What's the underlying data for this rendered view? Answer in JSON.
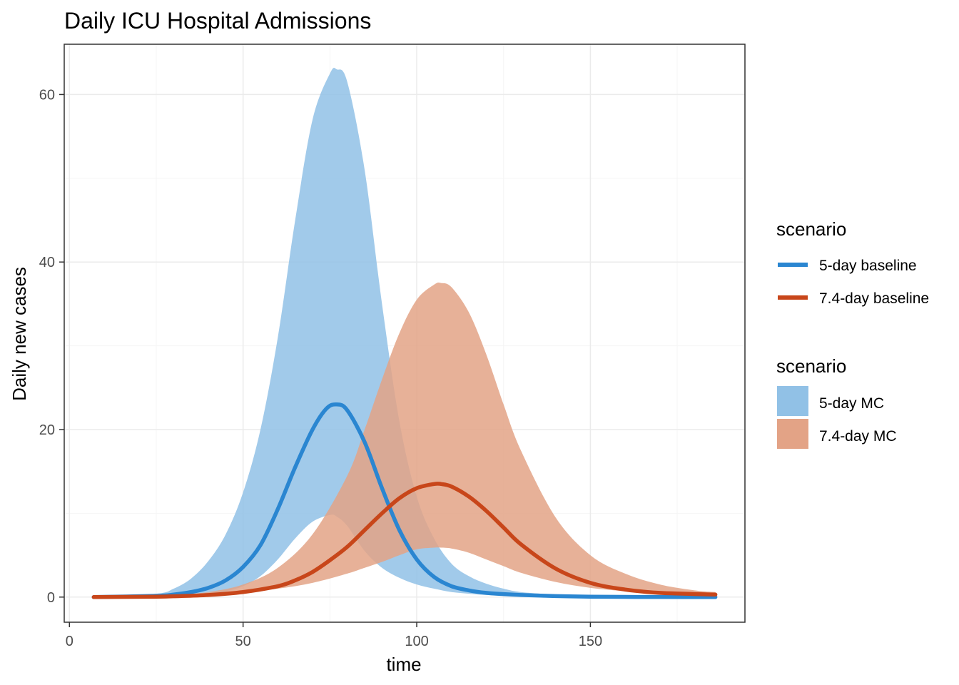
{
  "chart_data": {
    "type": "area",
    "title": "Daily ICU Hospital Admissions",
    "xlabel": "time",
    "ylabel": "Daily new cases",
    "xlim": [
      -1.5,
      194.5
    ],
    "ylim": [
      -3,
      66
    ],
    "x_ticks": [
      0,
      50,
      100,
      150
    ],
    "y_ticks": [
      0,
      20,
      40,
      60
    ],
    "x_tick_labels": [
      "0",
      "50",
      "100",
      "150"
    ],
    "y_tick_labels": [
      "0",
      "20",
      "40",
      "60"
    ],
    "grid": true,
    "legend_position": "right",
    "colors": {
      "line_5day": "#2a86d1",
      "line_74day": "#c8461a",
      "band_5day": "#91c1e6",
      "band_74day": "#e3a386",
      "panel_border": "#333333",
      "grid_major": "#ebebeb",
      "grid_minor": "#f5f5f5"
    },
    "line_legend": {
      "title": "scenario",
      "items": [
        {
          "label": "5-day baseline",
          "color": "#2a86d1"
        },
        {
          "label": "7.4-day baseline",
          "color": "#c8461a"
        }
      ]
    },
    "band_legend": {
      "title": "scenario",
      "items": [
        {
          "label": "5-day MC",
          "color": "#91c1e6"
        },
        {
          "label": "7.4-day MC",
          "color": "#e3a386"
        }
      ]
    },
    "series": [
      {
        "name": "5-day MC",
        "kind": "band",
        "x": [
          7,
          25,
          30,
          35,
          40,
          45,
          50,
          55,
          60,
          65,
          70,
          75,
          77,
          80,
          85,
          90,
          95,
          100,
          105,
          110,
          115,
          120,
          125,
          130,
          140,
          150,
          160,
          170,
          186
        ],
        "lower": [
          0,
          0.05,
          0.1,
          0.2,
          0.4,
          0.7,
          1.3,
          2.5,
          4.5,
          7.0,
          9.0,
          9.8,
          9.6,
          8.5,
          5.5,
          3.5,
          2.3,
          1.5,
          1.0,
          0.6,
          0.4,
          0.25,
          0.15,
          0.1,
          0.05,
          0.02,
          0.01,
          0.0,
          0.0
        ],
        "upper": [
          0,
          0.4,
          1.0,
          2.2,
          4.3,
          7.5,
          12.5,
          20.0,
          31.0,
          45.0,
          57.0,
          62.5,
          63.0,
          61.5,
          51.0,
          35.0,
          21.0,
          12.0,
          7.0,
          4.0,
          2.5,
          1.6,
          1.0,
          0.6,
          0.3,
          0.15,
          0.07,
          0.03,
          0.0
        ]
      },
      {
        "name": "7.4-day MC",
        "kind": "band",
        "x": [
          7,
          25,
          30,
          40,
          50,
          60,
          70,
          80,
          85,
          90,
          95,
          100,
          105,
          107,
          110,
          115,
          120,
          125,
          130,
          140,
          150,
          160,
          170,
          180,
          186
        ],
        "lower": [
          0,
          0.05,
          0.1,
          0.3,
          0.6,
          1.0,
          1.7,
          2.8,
          3.5,
          4.2,
          5.0,
          5.7,
          5.9,
          5.9,
          5.8,
          5.3,
          4.5,
          3.7,
          2.9,
          1.8,
          1.1,
          0.7,
          0.4,
          0.25,
          0.2
        ],
        "upper": [
          0,
          0.1,
          0.2,
          0.6,
          1.5,
          3.5,
          7.5,
          14.5,
          20.0,
          26.0,
          31.5,
          35.5,
          37.3,
          37.5,
          37.0,
          34.0,
          29.0,
          23.0,
          17.5,
          9.5,
          5.0,
          2.8,
          1.5,
          0.8,
          0.6
        ]
      },
      {
        "name": "5-day baseline",
        "kind": "line",
        "x": [
          7,
          25,
          30,
          35,
          40,
          45,
          50,
          55,
          60,
          65,
          70,
          74,
          77,
          80,
          85,
          90,
          95,
          100,
          105,
          110,
          115,
          120,
          125,
          130,
          140,
          150,
          160,
          170,
          186
        ],
        "y": [
          0,
          0.15,
          0.3,
          0.6,
          1.1,
          2.0,
          3.6,
          6.2,
          10.5,
          15.5,
          20.0,
          22.5,
          23.0,
          22.3,
          18.5,
          13.0,
          8.0,
          4.5,
          2.4,
          1.3,
          0.8,
          0.5,
          0.35,
          0.25,
          0.12,
          0.05,
          0.02,
          0.01,
          0.0
        ]
      },
      {
        "name": "7.4-day baseline",
        "kind": "line",
        "x": [
          7,
          25,
          30,
          40,
          50,
          60,
          65,
          70,
          75,
          80,
          85,
          90,
          95,
          100,
          105,
          107,
          110,
          115,
          120,
          125,
          130,
          140,
          150,
          160,
          170,
          186
        ],
        "y": [
          0,
          0.05,
          0.1,
          0.25,
          0.6,
          1.3,
          2.0,
          3.0,
          4.4,
          6.0,
          8.0,
          10.0,
          11.8,
          13.0,
          13.5,
          13.5,
          13.2,
          12.0,
          10.3,
          8.3,
          6.3,
          3.4,
          1.7,
          0.9,
          0.5,
          0.3
        ]
      }
    ]
  }
}
